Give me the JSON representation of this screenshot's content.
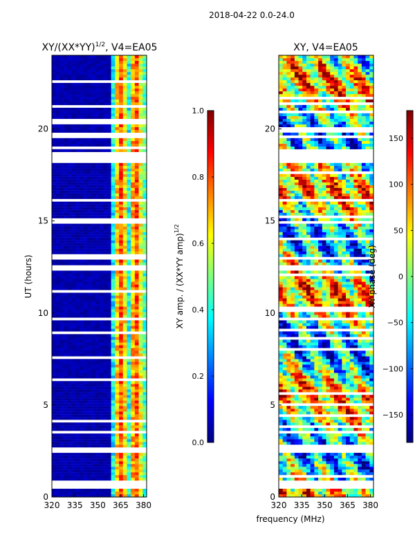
{
  "suptitle": "2018-04-22 0.0-24.0",
  "shared_xlabel": "frequency (MHz)",
  "colormap": [
    "#00007f",
    "#0000ff",
    "#007fff",
    "#00ffff",
    "#7fff7f",
    "#ffff00",
    "#ff7f00",
    "#ff0000",
    "#7f0000"
  ],
  "chart_data": [
    {
      "type": "heatmap",
      "title_prefix": "XY/(XX*YY)",
      "title_exponent": "1/2",
      "title_suffix": ", V4=EA05",
      "ylabel": "UT (hours)",
      "xlim": [
        320,
        382
      ],
      "ylim": [
        0,
        24
      ],
      "xticks": [
        320,
        335,
        350,
        365,
        380
      ],
      "yticks": [
        0,
        5,
        10,
        15,
        20
      ],
      "colorbar": {
        "label": "XY amp. / (XX*YY amp)",
        "label_exponent": "1/2",
        "range": [
          0.0,
          1.0
        ],
        "ticks": [
          "0.0",
          "0.2",
          "0.4",
          "0.6",
          "0.8",
          "1.0"
        ],
        "tick_values": [
          0.0,
          0.2,
          0.4,
          0.6,
          0.8,
          1.0
        ]
      }
    },
    {
      "type": "heatmap",
      "title": "XY, V4=EA05",
      "ylabel": "",
      "xlim": [
        320,
        382
      ],
      "ylim": [
        0,
        24
      ],
      "xticks": [
        320,
        335,
        350,
        365,
        380
      ],
      "yticks": [
        0,
        5,
        10,
        15,
        20
      ],
      "colorbar": {
        "label": "XY phase (deg)",
        "range": [
          -180,
          180
        ],
        "ticks": [
          "150",
          "100",
          "50",
          "0",
          "−50",
          "−100",
          "−150"
        ],
        "tick_values": [
          150,
          100,
          50,
          0,
          -50,
          -100,
          -150
        ]
      }
    }
  ]
}
